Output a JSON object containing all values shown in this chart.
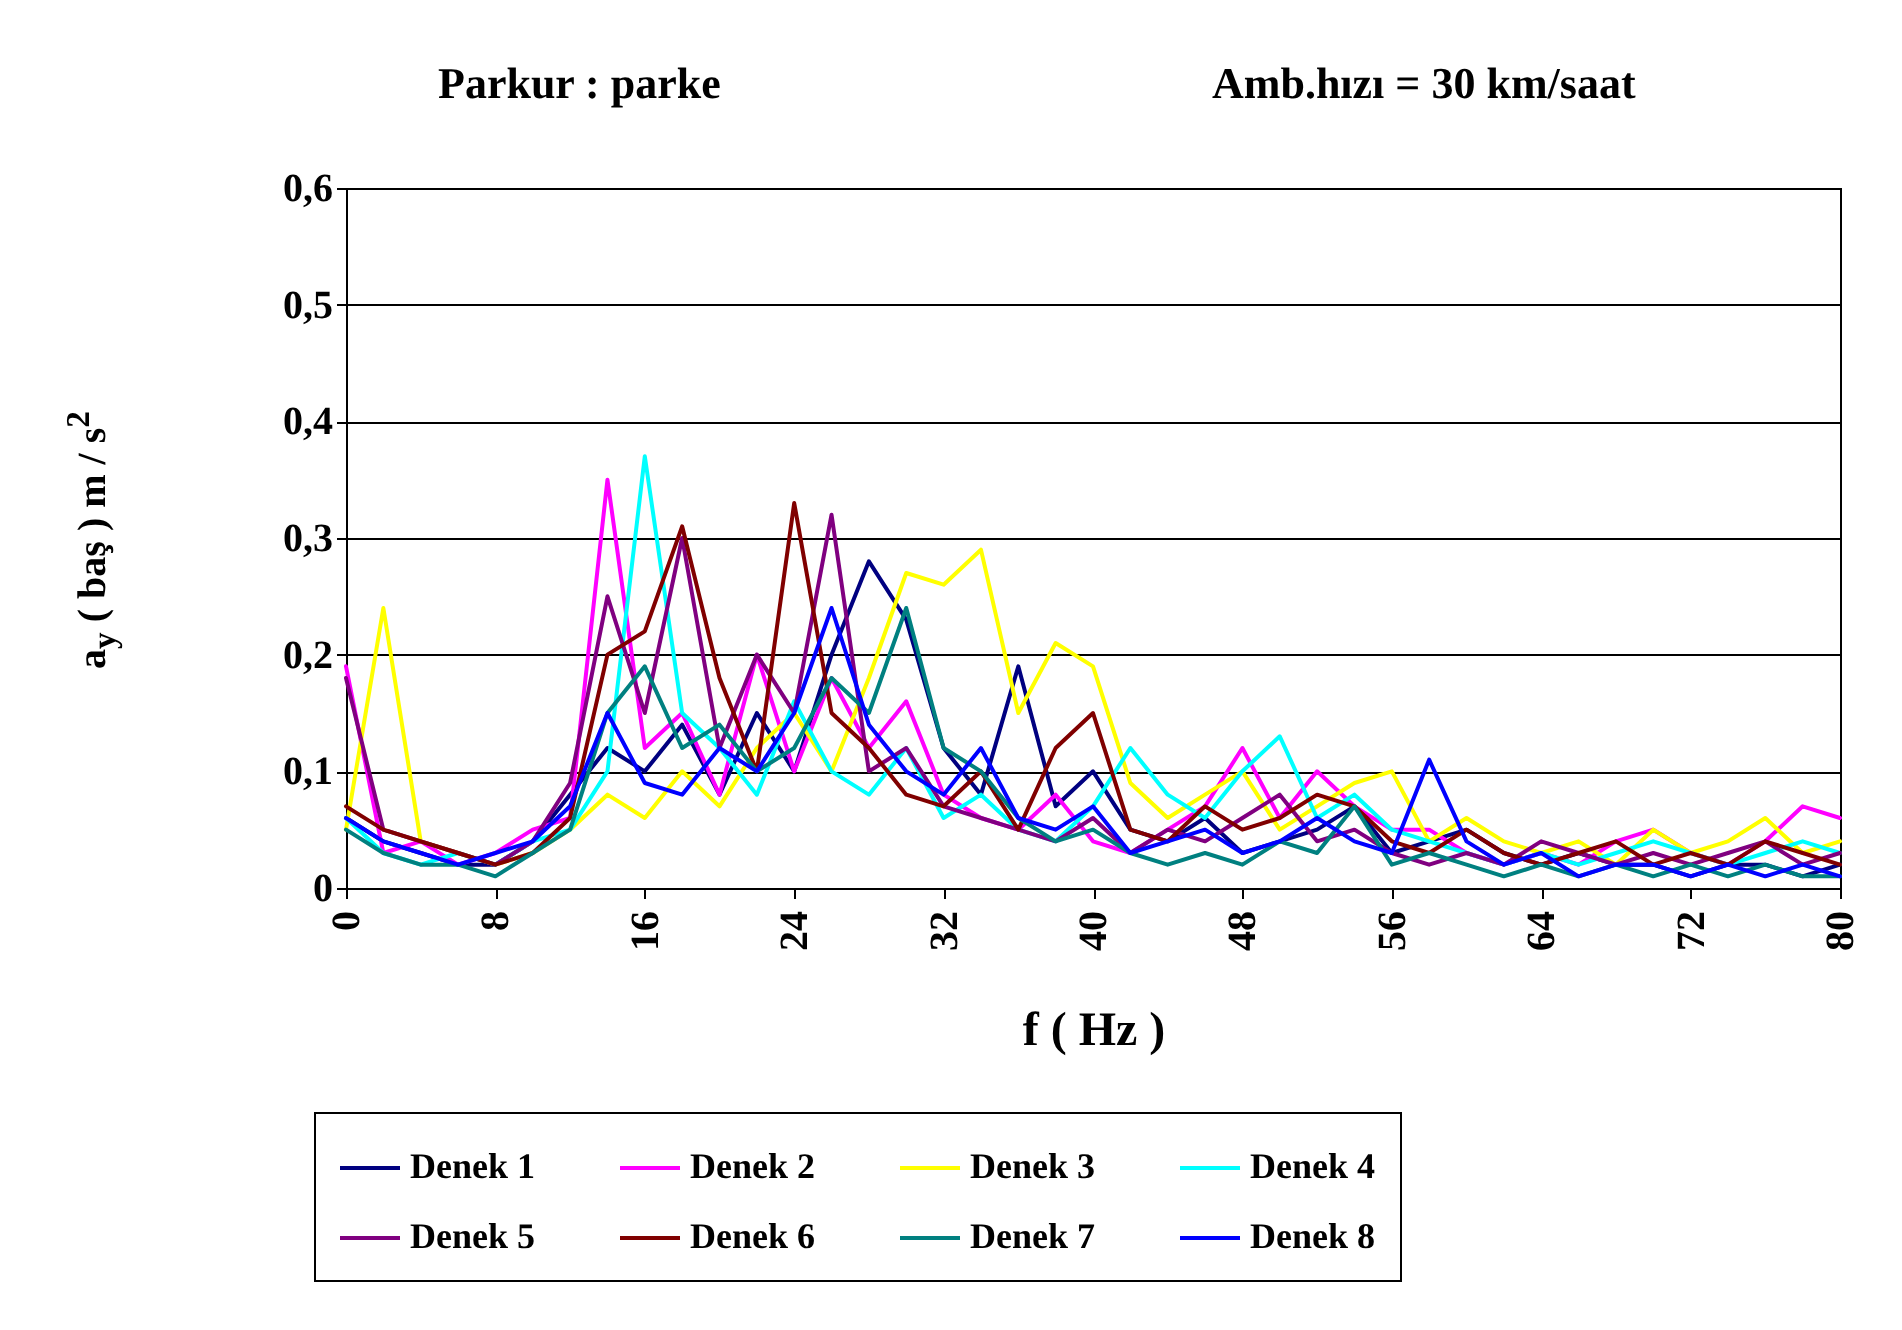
{
  "chart_data": {
    "type": "line",
    "title": "Parkur : parke",
    "subtitle": "Amb.hızı = 30 km/saat",
    "xlabel": "f ( Hz )",
    "ylabel": "a$_{y}$ ( baş ) m / s$^{2}$",
    "x": [
      0,
      2,
      4,
      6,
      8,
      10,
      12,
      14,
      16,
      18,
      20,
      22,
      24,
      26,
      28,
      30,
      32,
      34,
      36,
      38,
      40,
      42,
      44,
      46,
      48,
      50,
      52,
      54,
      56,
      58,
      60,
      62,
      64,
      66,
      68,
      70,
      72,
      74,
      76,
      78,
      80
    ],
    "xlim": [
      0,
      80
    ],
    "xticks": [
      0,
      8,
      16,
      24,
      32,
      40,
      48,
      56,
      64,
      72,
      80
    ],
    "ylim": [
      0,
      0.6
    ],
    "yticks": [
      {
        "value": 0,
        "label": "0"
      },
      {
        "value": 0.1,
        "label": "0,1"
      },
      {
        "value": 0.2,
        "label": "0,2"
      },
      {
        "value": 0.3,
        "label": "0,3"
      },
      {
        "value": 0.4,
        "label": "0,4"
      },
      {
        "value": 0.5,
        "label": "0,5"
      },
      {
        "value": 0.6,
        "label": "0,6"
      }
    ],
    "grid": "y",
    "legend": "bottom",
    "marker": "none",
    "line_style": "solid",
    "series": [
      {
        "name": "Denek 1",
        "color": "#000080",
        "values": [
          0.06,
          0.04,
          0.03,
          0.02,
          0.02,
          0.04,
          0.08,
          0.12,
          0.1,
          0.14,
          0.08,
          0.15,
          0.1,
          0.2,
          0.28,
          0.23,
          0.12,
          0.08,
          0.19,
          0.07,
          0.1,
          0.05,
          0.04,
          0.06,
          0.03,
          0.04,
          0.05,
          0.07,
          0.03,
          0.04,
          0.05,
          0.03,
          0.02,
          0.03,
          0.02,
          0.02,
          0.01,
          0.02,
          0.02,
          0.01,
          0.02
        ]
      },
      {
        "name": "Denek 2",
        "color": "#ff00ff",
        "values": [
          0.19,
          0.03,
          0.04,
          0.02,
          0.03,
          0.05,
          0.06,
          0.35,
          0.12,
          0.15,
          0.08,
          0.2,
          0.1,
          0.18,
          0.12,
          0.16,
          0.08,
          0.06,
          0.05,
          0.08,
          0.04,
          0.03,
          0.05,
          0.07,
          0.12,
          0.06,
          0.1,
          0.07,
          0.05,
          0.05,
          0.03,
          0.02,
          0.03,
          0.02,
          0.04,
          0.05,
          0.03,
          0.02,
          0.04,
          0.07,
          0.06
        ]
      },
      {
        "name": "Denek 3",
        "color": "#ffff00",
        "values": [
          0.05,
          0.24,
          0.04,
          0.03,
          0.02,
          0.03,
          0.05,
          0.08,
          0.06,
          0.1,
          0.07,
          0.12,
          0.15,
          0.1,
          0.18,
          0.27,
          0.26,
          0.29,
          0.15,
          0.21,
          0.19,
          0.09,
          0.06,
          0.08,
          0.1,
          0.05,
          0.07,
          0.09,
          0.1,
          0.04,
          0.06,
          0.04,
          0.03,
          0.04,
          0.02,
          0.05,
          0.03,
          0.04,
          0.06,
          0.03,
          0.04
        ]
      },
      {
        "name": "Denek 4",
        "color": "#00ffff",
        "values": [
          0.06,
          0.03,
          0.02,
          0.03,
          0.02,
          0.04,
          0.05,
          0.1,
          0.37,
          0.15,
          0.12,
          0.08,
          0.16,
          0.1,
          0.08,
          0.12,
          0.06,
          0.08,
          0.05,
          0.04,
          0.07,
          0.12,
          0.08,
          0.06,
          0.1,
          0.13,
          0.06,
          0.08,
          0.05,
          0.04,
          0.03,
          0.02,
          0.03,
          0.02,
          0.03,
          0.04,
          0.03,
          0.02,
          0.03,
          0.04,
          0.03
        ]
      },
      {
        "name": "Denek 5",
        "color": "#800080",
        "values": [
          0.18,
          0.05,
          0.04,
          0.03,
          0.02,
          0.04,
          0.09,
          0.25,
          0.15,
          0.3,
          0.12,
          0.2,
          0.15,
          0.32,
          0.1,
          0.12,
          0.07,
          0.06,
          0.05,
          0.04,
          0.06,
          0.03,
          0.05,
          0.04,
          0.06,
          0.08,
          0.04,
          0.05,
          0.03,
          0.02,
          0.03,
          0.02,
          0.04,
          0.03,
          0.02,
          0.03,
          0.02,
          0.03,
          0.04,
          0.02,
          0.03
        ]
      },
      {
        "name": "Denek 6",
        "color": "#800000",
        "values": [
          0.07,
          0.05,
          0.04,
          0.03,
          0.02,
          0.03,
          0.06,
          0.2,
          0.22,
          0.31,
          0.18,
          0.1,
          0.33,
          0.15,
          0.12,
          0.08,
          0.07,
          0.1,
          0.05,
          0.12,
          0.15,
          0.05,
          0.04,
          0.07,
          0.05,
          0.06,
          0.08,
          0.07,
          0.04,
          0.03,
          0.05,
          0.03,
          0.02,
          0.03,
          0.04,
          0.02,
          0.03,
          0.02,
          0.04,
          0.03,
          0.02
        ]
      },
      {
        "name": "Denek 7",
        "color": "#008080",
        "values": [
          0.05,
          0.03,
          0.02,
          0.02,
          0.01,
          0.03,
          0.05,
          0.15,
          0.19,
          0.12,
          0.14,
          0.1,
          0.12,
          0.18,
          0.15,
          0.24,
          0.12,
          0.1,
          0.06,
          0.04,
          0.05,
          0.03,
          0.02,
          0.03,
          0.02,
          0.04,
          0.03,
          0.07,
          0.02,
          0.03,
          0.02,
          0.01,
          0.02,
          0.01,
          0.02,
          0.01,
          0.02,
          0.01,
          0.02,
          0.01,
          0.01
        ]
      },
      {
        "name": "Denek 8",
        "color": "#0000ff",
        "values": [
          0.06,
          0.04,
          0.03,
          0.02,
          0.03,
          0.04,
          0.07,
          0.15,
          0.09,
          0.08,
          0.12,
          0.1,
          0.15,
          0.24,
          0.14,
          0.1,
          0.08,
          0.12,
          0.06,
          0.05,
          0.07,
          0.03,
          0.04,
          0.05,
          0.03,
          0.04,
          0.06,
          0.04,
          0.03,
          0.11,
          0.04,
          0.02,
          0.03,
          0.01,
          0.02,
          0.02,
          0.01,
          0.02,
          0.01,
          0.02,
          0.01
        ]
      }
    ]
  }
}
